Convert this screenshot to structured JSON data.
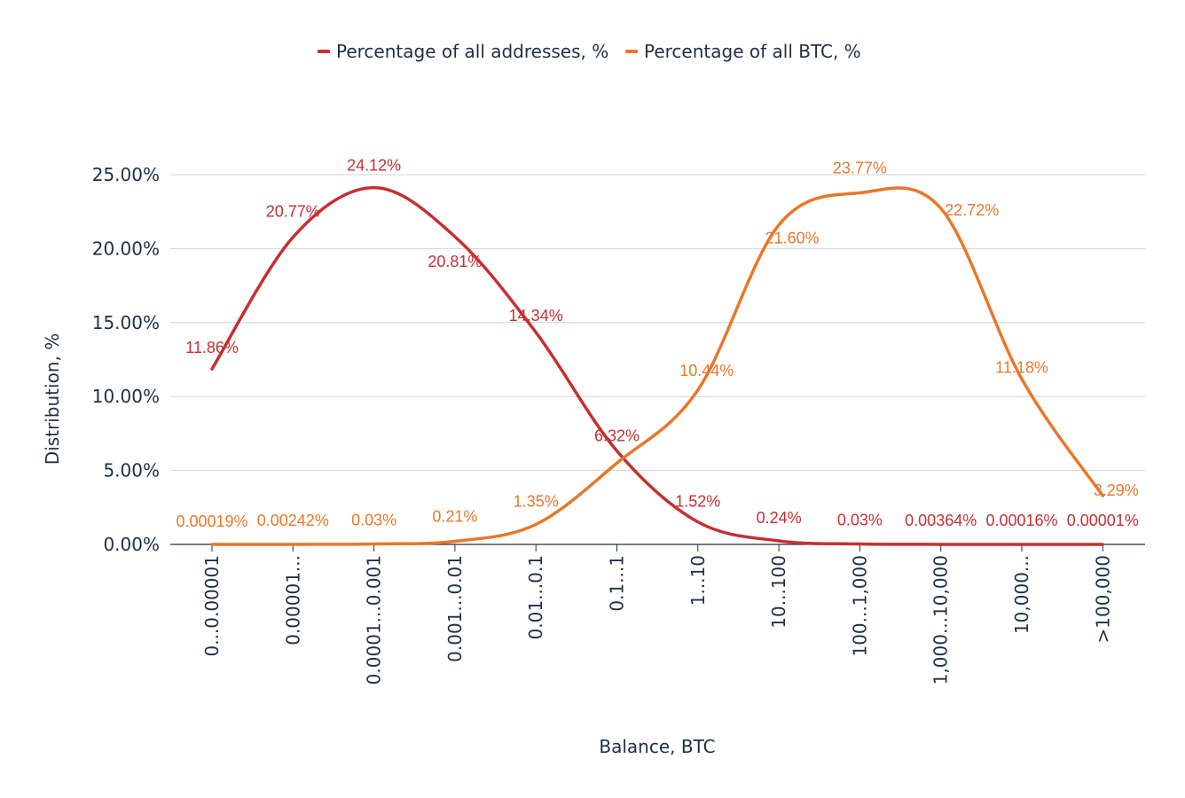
{
  "chart_data": {
    "type": "line",
    "title": "",
    "xlabel": "Balance, BTC",
    "ylabel": "Distribution, %",
    "ylim": [
      0,
      25
    ],
    "yticks": [
      "0.00%",
      "5.00%",
      "10.00%",
      "15.00%",
      "20.00%",
      "25.00%"
    ],
    "ytick_values": [
      0,
      5,
      10,
      15,
      20,
      25
    ],
    "grid": true,
    "legend_position": "top-center",
    "categories": [
      "0...0.00001",
      "0.00001...",
      "0.0001...0.001",
      "0.001...0.01",
      "0.01...0.1",
      "0.1...1",
      "1...10",
      "10...100",
      "100...1,000",
      "1,000...10,000",
      "10,000...",
      ">100,000"
    ],
    "series": [
      {
        "name": "Percentage of all addresses, %",
        "color": "#c62f32",
        "values": [
          11.86,
          20.77,
          24.12,
          20.81,
          14.34,
          6.32,
          1.52,
          0.24,
          0.03,
          0.00364,
          0.00016,
          1e-05
        ],
        "labels": [
          "11.86%",
          "20.77%",
          "24.12%",
          "20.81%",
          "14.34%",
          "6.32%",
          "1.52%",
          "0.24%",
          "0.03%",
          "0.00364%",
          "0.00016%",
          "0.00001%"
        ]
      },
      {
        "name": "Percentage of all BTC, %",
        "color": "#e8772a",
        "values": [
          0.00019,
          0.00242,
          0.03,
          0.21,
          1.35,
          5.5,
          10.44,
          21.6,
          23.77,
          22.72,
          11.18,
          3.29
        ],
        "labels": [
          "0.00019%",
          "0.00242%",
          "0.03%",
          "0.21%",
          "1.35%",
          "",
          "10.44%",
          "21.60%",
          "23.77%",
          "22.72%",
          "11.18%",
          "3.29%"
        ]
      }
    ]
  }
}
